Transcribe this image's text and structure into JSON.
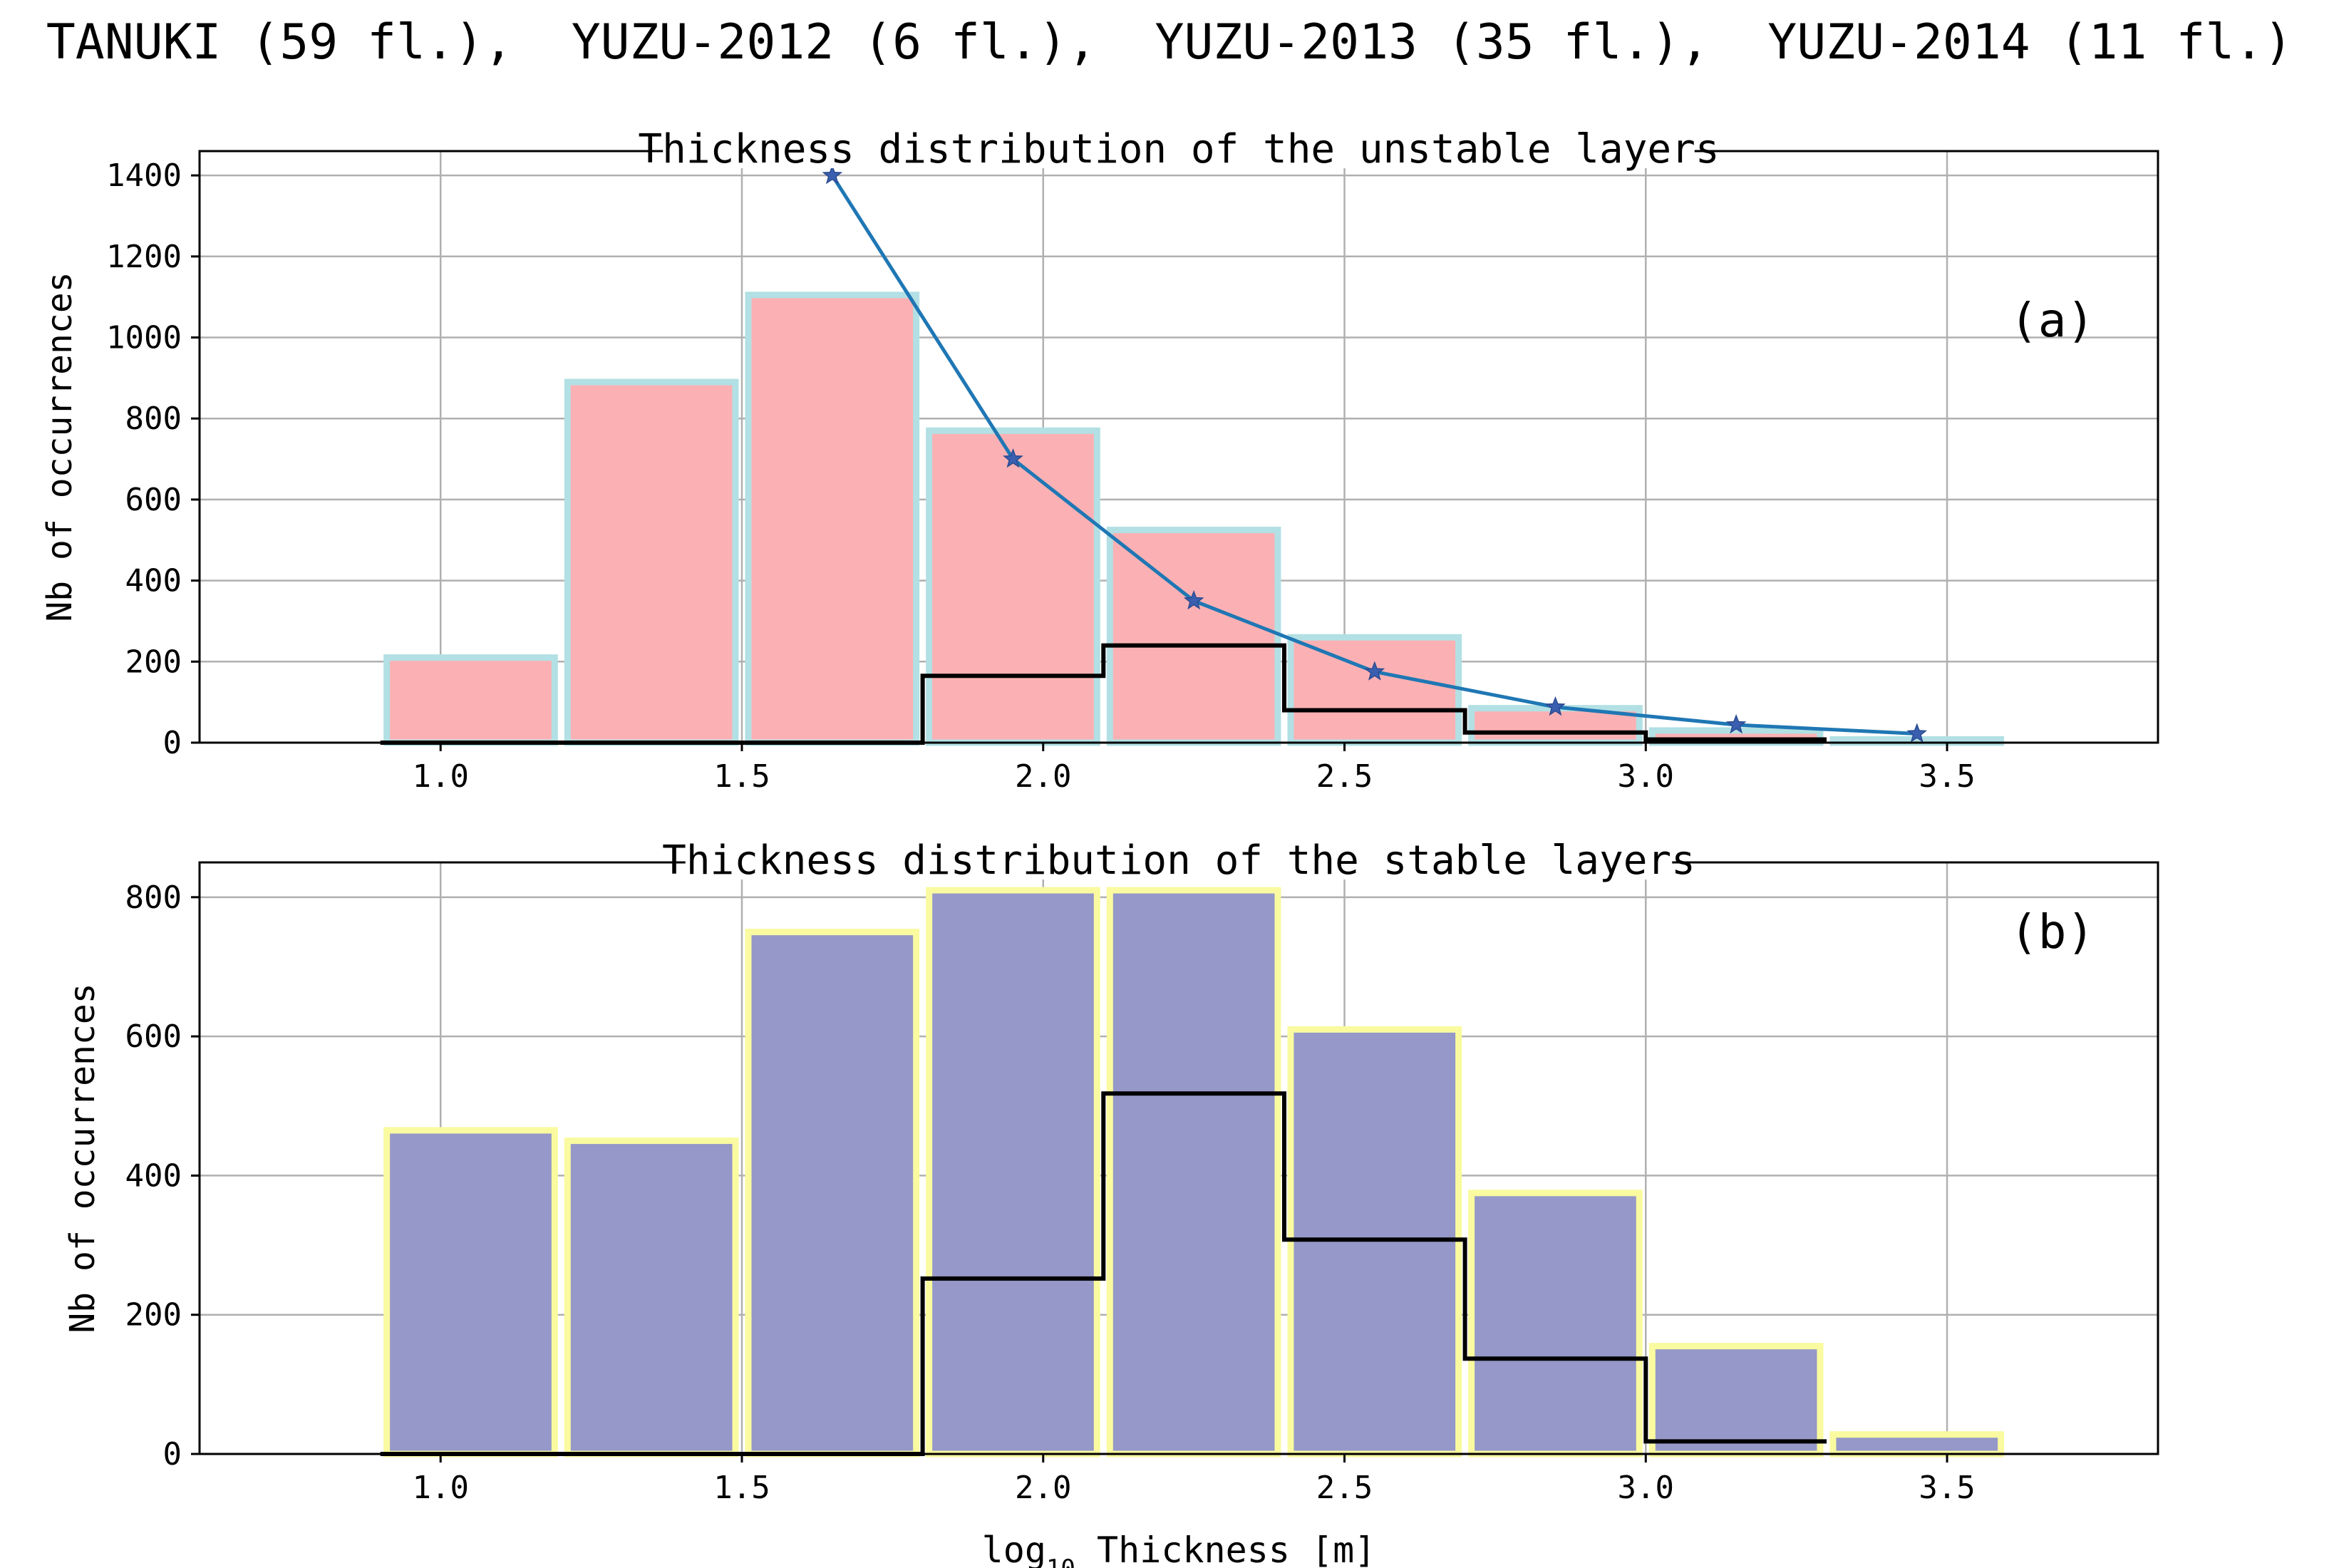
{
  "figure": {
    "title": "TANUKI (59 fl.),  YUZU-2012 (6 fl.),  YUZU-2013 (35 fl.),  YUZU-2014 (11 fl.)"
  },
  "chart_data": [
    {
      "type": "bar",
      "title": "Thickness distribution of the unstable layers",
      "panel_label": "(a)",
      "xlabel": "",
      "ylabel": "Nb of occurrences",
      "xlim": [
        0.6,
        3.85
      ],
      "ylim": [
        0,
        1460
      ],
      "xticks": [
        1.0,
        1.5,
        2.0,
        2.5,
        3.0,
        3.5
      ],
      "xtick_labels": [
        "1.0",
        "1.5",
        "2.0",
        "2.5",
        "3.0",
        "3.5"
      ],
      "yticks": [
        0,
        200,
        400,
        600,
        800,
        1000,
        1200,
        1400
      ],
      "ytick_labels": [
        "0",
        "200",
        "400",
        "600",
        "800",
        "1000",
        "1200",
        "1400"
      ],
      "grid": true,
      "bar_color": "#fbb1b4",
      "bar_edge_color": "#b2e0e4",
      "bins": [
        [
          0.9,
          1.2
        ],
        [
          1.2,
          1.5
        ],
        [
          1.5,
          1.8
        ],
        [
          1.8,
          2.1
        ],
        [
          2.1,
          2.4
        ],
        [
          2.4,
          2.7
        ],
        [
          2.7,
          3.0
        ],
        [
          3.0,
          3.3
        ],
        [
          3.3,
          3.6
        ]
      ],
      "values": [
        210,
        890,
        1105,
        770,
        525,
        260,
        85,
        30,
        8
      ],
      "step_series": {
        "color": "#000000",
        "edges": [
          0.9,
          1.2,
          1.5,
          1.8,
          2.1,
          2.4,
          2.7,
          3.0,
          3.3
        ],
        "values": [
          0,
          0,
          0,
          165,
          240,
          80,
          25,
          8
        ]
      },
      "line_series": {
        "color": "#1f77b4",
        "marker": "star",
        "x": [
          1.65,
          1.95,
          2.25,
          2.55,
          2.85,
          3.15,
          3.45
        ],
        "y": [
          1400,
          700,
          350,
          175,
          88,
          44,
          22
        ]
      }
    },
    {
      "type": "bar",
      "title": "Thickness distribution of the stable layers",
      "panel_label": "(b)",
      "xlabel": "log10 Thickness [m]",
      "xlabel_main": "log",
      "xlabel_sub": "10",
      "xlabel_rest": " Thickness [m]",
      "ylabel": "Nb of occurrences",
      "xlim": [
        0.6,
        3.85
      ],
      "ylim": [
        0,
        850
      ],
      "xticks": [
        1.0,
        1.5,
        2.0,
        2.5,
        3.0,
        3.5
      ],
      "xtick_labels": [
        "1.0",
        "1.5",
        "2.0",
        "2.5",
        "3.0",
        "3.5"
      ],
      "yticks": [
        0,
        200,
        400,
        600,
        800
      ],
      "ytick_labels": [
        "0",
        "200",
        "400",
        "600",
        "800"
      ],
      "grid": true,
      "bar_color": "#9598c8",
      "bar_edge_color": "#fafaa0",
      "bins": [
        [
          0.9,
          1.2
        ],
        [
          1.2,
          1.5
        ],
        [
          1.5,
          1.8
        ],
        [
          1.8,
          2.1
        ],
        [
          2.1,
          2.4
        ],
        [
          2.4,
          2.7
        ],
        [
          2.7,
          3.0
        ],
        [
          3.0,
          3.3
        ],
        [
          3.3,
          3.6
        ]
      ],
      "values": [
        465,
        450,
        750,
        810,
        810,
        610,
        375,
        155,
        28
      ],
      "step_series": {
        "color": "#000000",
        "edges": [
          0.9,
          1.2,
          1.5,
          1.8,
          2.1,
          2.4,
          2.7,
          3.0,
          3.3
        ],
        "values": [
          0,
          0,
          0,
          252,
          518,
          308,
          137,
          18
        ]
      }
    }
  ]
}
